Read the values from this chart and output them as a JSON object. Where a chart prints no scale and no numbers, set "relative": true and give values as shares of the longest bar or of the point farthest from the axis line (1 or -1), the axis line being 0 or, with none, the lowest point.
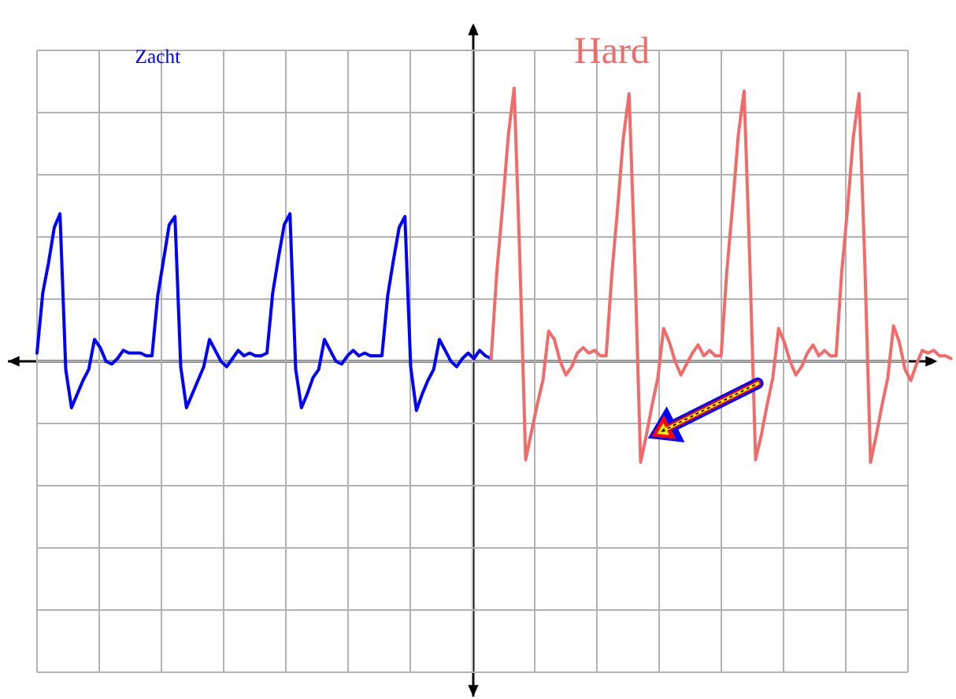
{
  "chart_data": {
    "type": "line",
    "relative": true,
    "grid": true,
    "categories": [
      null,
      null,
      null,
      null,
      null,
      null,
      null,
      null,
      null,
      null,
      null,
      null,
      null,
      null,
      null,
      null,
      null,
      null,
      null,
      null,
      null,
      null,
      null,
      null,
      null,
      null,
      null,
      null,
      null,
      null,
      null,
      null,
      null,
      null,
      null,
      null,
      null,
      null,
      null,
      null,
      null,
      null,
      null,
      null,
      null,
      null,
      null,
      null,
      null,
      null,
      null,
      null,
      null,
      null,
      null,
      null,
      null,
      null,
      null,
      null,
      null,
      null,
      null,
      null,
      null,
      null,
      null,
      null,
      null,
      null,
      null,
      null,
      null,
      null,
      null,
      null,
      null,
      null,
      null,
      null,
      null,
      null,
      null,
      null,
      null,
      null,
      null,
      null,
      null,
      null,
      null,
      null,
      null,
      null,
      null,
      null,
      null,
      null,
      null,
      null,
      null,
      null,
      null,
      null,
      null,
      null,
      null,
      null,
      null,
      null,
      null,
      null,
      null,
      null,
      null,
      null,
      null,
      null,
      null,
      null,
      null,
      null,
      null,
      null,
      null,
      null,
      null,
      null,
      null,
      null,
      null,
      null,
      null,
      null,
      null,
      null,
      null,
      null,
      null,
      null,
      null,
      null,
      null,
      null,
      null,
      null,
      null,
      null,
      null,
      null,
      null,
      null,
      null,
      null,
      null,
      null,
      null,
      null,
      null,
      null
    ],
    "series": [
      {
        "name": "Zacht",
        "color": "#0000ff",
        "values": [
          0.03,
          0.25,
          0.36,
          0.49,
          0.54,
          -0.03,
          -0.17,
          -0.12,
          -0.07,
          -0.03,
          0.08,
          0.05,
          0.0,
          -0.01,
          0.01,
          0.04,
          0.03,
          0.03,
          0.03,
          0.02,
          0.02,
          0.24,
          0.37,
          0.5,
          0.53,
          -0.02,
          -0.17,
          -0.12,
          -0.07,
          -0.02,
          0.08,
          0.04,
          0.0,
          -0.02,
          0.01,
          0.04,
          0.02,
          0.03,
          0.02,
          0.02,
          0.03,
          0.25,
          0.38,
          0.5,
          0.54,
          -0.03,
          -0.17,
          -0.12,
          -0.06,
          -0.03,
          0.08,
          0.04,
          0.0,
          -0.01,
          0.02,
          0.04,
          0.02,
          0.03,
          0.02,
          0.02,
          0.02,
          0.24,
          0.37,
          0.49,
          0.53,
          -0.02,
          -0.18,
          -0.12,
          -0.07,
          -0.03,
          0.08,
          0.04,
          0.0,
          -0.02,
          0.01,
          0.03,
          0.01,
          0.04,
          0.02,
          0.01,
          null,
          null,
          null,
          null,
          null,
          null,
          null,
          null,
          null,
          null,
          null,
          null,
          null,
          null,
          null,
          null,
          null,
          null,
          null,
          null,
          null,
          null,
          null,
          null,
          null,
          null,
          null,
          null,
          null,
          null,
          null,
          null,
          null,
          null,
          null,
          null,
          null,
          null,
          null,
          null,
          null,
          null,
          null,
          null,
          null,
          null,
          null,
          null,
          null,
          null,
          null,
          null,
          null,
          null,
          null,
          null,
          null,
          null,
          null,
          null,
          null,
          null,
          null,
          null,
          null,
          null,
          null,
          null,
          null,
          null,
          null,
          null,
          null,
          null,
          null,
          null,
          null,
          null,
          null,
          null
        ]
      },
      {
        "name": "Hard",
        "color": "#f26b6b",
        "values": [
          null,
          null,
          null,
          null,
          null,
          null,
          null,
          null,
          null,
          null,
          null,
          null,
          null,
          null,
          null,
          null,
          null,
          null,
          null,
          null,
          null,
          null,
          null,
          null,
          null,
          null,
          null,
          null,
          null,
          null,
          null,
          null,
          null,
          null,
          null,
          null,
          null,
          null,
          null,
          null,
          null,
          null,
          null,
          null,
          null,
          null,
          null,
          null,
          null,
          null,
          null,
          null,
          null,
          null,
          null,
          null,
          null,
          null,
          null,
          null,
          null,
          null,
          null,
          null,
          null,
          null,
          null,
          null,
          null,
          null,
          null,
          null,
          null,
          null,
          null,
          null,
          null,
          null,
          null,
          0.01,
          0.33,
          0.57,
          0.83,
          1.0,
          0.37,
          -0.36,
          -0.26,
          -0.16,
          -0.07,
          0.11,
          0.08,
          0.0,
          -0.05,
          -0.02,
          0.03,
          0.05,
          0.03,
          0.04,
          0.02,
          0.02,
          0.32,
          0.56,
          0.82,
          0.98,
          0.36,
          -0.37,
          -0.27,
          -0.16,
          -0.06,
          0.12,
          0.07,
          0.0,
          -0.05,
          -0.01,
          0.03,
          0.06,
          0.02,
          0.04,
          0.02,
          0.02,
          0.33,
          0.57,
          0.83,
          0.99,
          0.36,
          -0.36,
          -0.27,
          -0.16,
          -0.06,
          0.12,
          0.07,
          0.0,
          -0.05,
          -0.02,
          0.03,
          0.06,
          0.02,
          0.04,
          0.02,
          0.02,
          0.33,
          0.56,
          0.82,
          0.98,
          0.36,
          -0.37,
          -0.27,
          -0.16,
          -0.06,
          0.13,
          0.07,
          -0.03,
          -0.07,
          -0.01,
          0.04,
          0.03,
          0.04,
          0.02,
          0.02,
          0.01
        ]
      }
    ]
  }
}
